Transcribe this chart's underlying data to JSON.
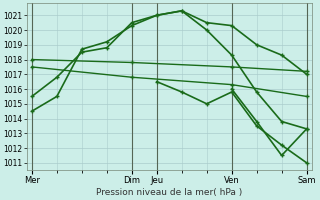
{
  "bg_color": "#cceee8",
  "grid_color": "#aacccc",
  "line_color": "#1a6b1a",
  "vline_color": "#556655",
  "xlabel": "Pression niveau de la mer( hPa )",
  "ylim": [
    1010.5,
    1021.8
  ],
  "yticks": [
    1011,
    1012,
    1013,
    1014,
    1015,
    1016,
    1017,
    1018,
    1019,
    1020,
    1021
  ],
  "day_positions": [
    0,
    4,
    5,
    8,
    11
  ],
  "day_labels": [
    "Mer",
    "Dim",
    "Jeu",
    "Ven",
    "Sam"
  ],
  "xlim": [
    -0.2,
    11.2
  ],
  "lines": [
    {
      "x": [
        0,
        1,
        2,
        3,
        4,
        5,
        6,
        7,
        8,
        9,
        10,
        11
      ],
      "y": [
        1014.5,
        1015.5,
        1018.7,
        1019.2,
        1020.3,
        1021.0,
        1021.3,
        1020.5,
        1020.3,
        1019.0,
        1018.3,
        1017.0
      ],
      "lw": 1.2
    },
    {
      "x": [
        0,
        4,
        8,
        11
      ],
      "y": [
        1018.0,
        1017.8,
        1017.5,
        1017.2
      ],
      "lw": 1.0
    },
    {
      "x": [
        0,
        4,
        8,
        11
      ],
      "y": [
        1017.5,
        1016.8,
        1016.3,
        1015.5
      ],
      "lw": 1.0
    },
    {
      "x": [
        0,
        1,
        2,
        3,
        4,
        5,
        6,
        7,
        8,
        9,
        10,
        11
      ],
      "y": [
        1015.5,
        1016.8,
        1018.5,
        1018.8,
        1020.5,
        1021.0,
        1021.3,
        1020.0,
        1018.3,
        1015.8,
        1013.8,
        1013.3
      ],
      "lw": 1.2
    },
    {
      "x": [
        5,
        6,
        7,
        8,
        9,
        10,
        11
      ],
      "y": [
        1016.5,
        1015.8,
        1015.0,
        1015.8,
        1013.5,
        1012.2,
        1011.0
      ],
      "lw": 1.2
    },
    {
      "x": [
        8,
        9,
        10,
        11
      ],
      "y": [
        1016.0,
        1013.8,
        1011.5,
        1013.3
      ],
      "lw": 1.2
    }
  ]
}
